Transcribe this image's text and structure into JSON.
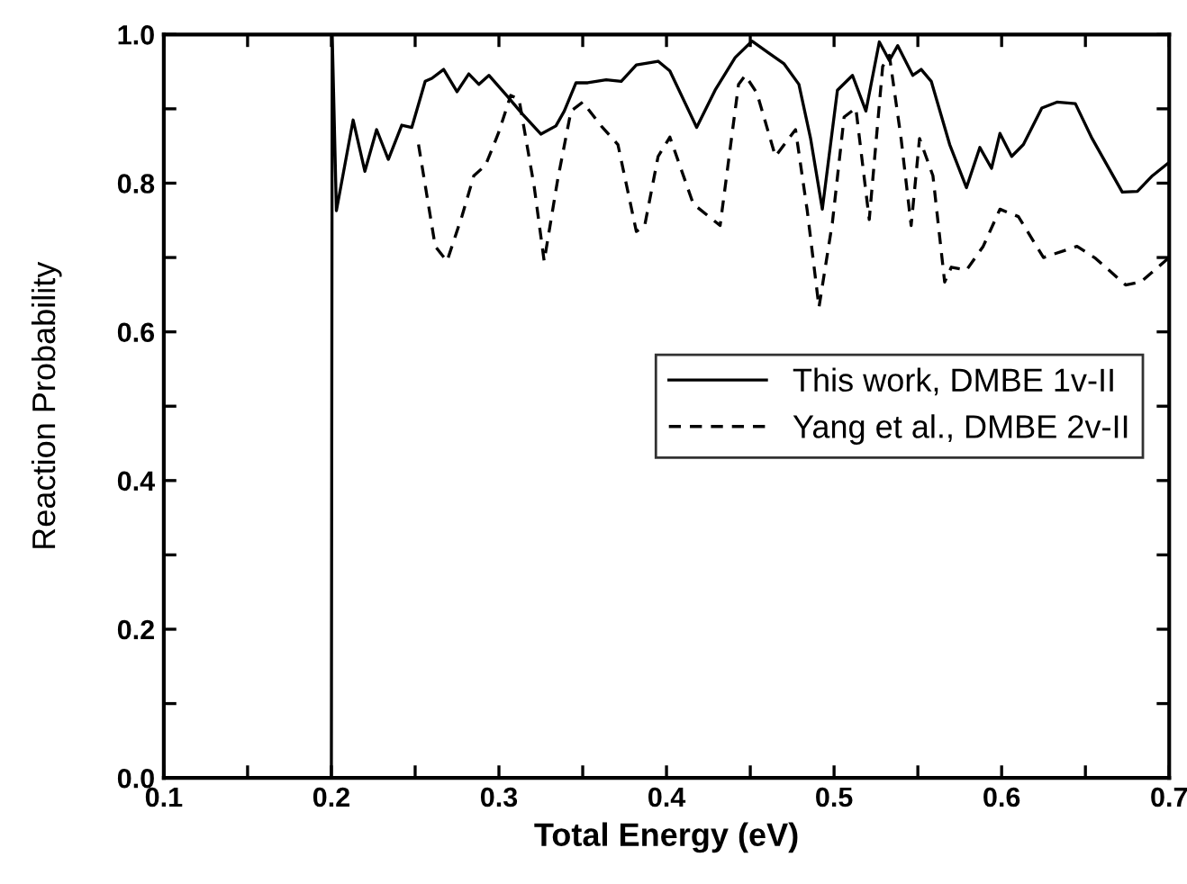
{
  "chart_data": {
    "type": "line",
    "xlabel": "Total Energy (eV)",
    "ylabel": "Reaction Probability",
    "xlim": [
      0.1,
      0.7
    ],
    "ylim": [
      0,
      1.0
    ],
    "xticks": [
      0.1,
      {
        "value": 0.15,
        "label": null
      },
      0.2,
      {
        "value": 0.25,
        "label": null
      },
      0.3,
      {
        "value": 0.35,
        "label": null
      },
      0.4,
      {
        "value": 0.45,
        "label": null
      },
      0.5,
      {
        "value": 0.55,
        "label": null
      },
      0.6,
      {
        "value": 0.65,
        "label": null
      },
      0.7
    ],
    "yticks": [
      {
        "value": 0,
        "label": "0.0"
      },
      {
        "value": 0.1,
        "label": null
      },
      0.2,
      {
        "value": 0.3,
        "label": null
      },
      0.4,
      {
        "value": 0.5,
        "label": null
      },
      0.6,
      {
        "value": 0.7,
        "label": null
      },
      0.8,
      {
        "value": 0.9,
        "label": null
      },
      {
        "value": 1.0,
        "label": "1.0"
      }
    ],
    "grid": false,
    "legend": "right",
    "marker": "none",
    "series": [
      {
        "name": "This work, DMBE 1v-II",
        "color": "#000000",
        "line_style": "solid",
        "x": [
          0.2,
          0.2005,
          0.203,
          0.213,
          0.22,
          0.227,
          0.234,
          0.242,
          0.248,
          0.256,
          0.26,
          0.267,
          0.275,
          0.282,
          0.288,
          0.294,
          0.305,
          0.314,
          0.325,
          0.334,
          0.339,
          0.346,
          0.353,
          0.364,
          0.373,
          0.382,
          0.395,
          0.402,
          0.418,
          0.429,
          0.441,
          0.451,
          0.461,
          0.47,
          0.479,
          0.486,
          0.493,
          0.502,
          0.511,
          0.519,
          0.527,
          0.533,
          0.538,
          0.547,
          0.552,
          0.558,
          0.569,
          0.579,
          0.587,
          0.594,
          0.599,
          0.606,
          0.613,
          0.624,
          0.633,
          0.644,
          0.654,
          0.672,
          0.681,
          0.69,
          0.7
        ],
        "values": [
          0.0,
          1.0,
          0.763,
          0.885,
          0.816,
          0.872,
          0.832,
          0.878,
          0.875,
          0.937,
          0.941,
          0.953,
          0.923,
          0.947,
          0.933,
          0.945,
          0.917,
          0.893,
          0.866,
          0.877,
          0.897,
          0.935,
          0.935,
          0.939,
          0.937,
          0.959,
          0.964,
          0.951,
          0.875,
          0.925,
          0.969,
          0.991,
          0.975,
          0.961,
          0.933,
          0.86,
          0.765,
          0.925,
          0.945,
          0.897,
          0.99,
          0.965,
          0.985,
          0.945,
          0.953,
          0.937,
          0.852,
          0.794,
          0.848,
          0.82,
          0.867,
          0.836,
          0.852,
          0.901,
          0.909,
          0.907,
          0.86,
          0.788,
          0.789,
          0.81,
          0.828
        ]
      },
      {
        "name": "Yang et al., DMBE 2v-II",
        "color": "#000000",
        "line_style": "dashed",
        "x": [
          0.252,
          0.262,
          0.269,
          0.278,
          0.285,
          0.292,
          0.3,
          0.307,
          0.312,
          0.321,
          0.327,
          0.335,
          0.343,
          0.35,
          0.361,
          0.371,
          0.382,
          0.387,
          0.395,
          0.402,
          0.416,
          0.432,
          0.443,
          0.447,
          0.454,
          0.465,
          0.477,
          0.484,
          0.491,
          0.499,
          0.506,
          0.513,
          0.521,
          0.529,
          0.533,
          0.54,
          0.546,
          0.551,
          0.559,
          0.566,
          0.57,
          0.579,
          0.589,
          0.599,
          0.61,
          0.625,
          0.645,
          0.656,
          0.674,
          0.683,
          0.7
        ],
        "values": [
          0.852,
          0.715,
          0.695,
          0.756,
          0.81,
          0.824,
          0.869,
          0.918,
          0.913,
          0.796,
          0.695,
          0.804,
          0.897,
          0.909,
          0.877,
          0.852,
          0.735,
          0.743,
          0.836,
          0.862,
          0.772,
          0.743,
          0.933,
          0.945,
          0.921,
          0.836,
          0.872,
          0.763,
          0.633,
          0.747,
          0.889,
          0.901,
          0.751,
          0.957,
          0.972,
          0.86,
          0.743,
          0.86,
          0.81,
          0.667,
          0.687,
          0.683,
          0.715,
          0.765,
          0.755,
          0.7,
          0.715,
          0.699,
          0.663,
          0.667,
          0.7
        ]
      }
    ]
  }
}
